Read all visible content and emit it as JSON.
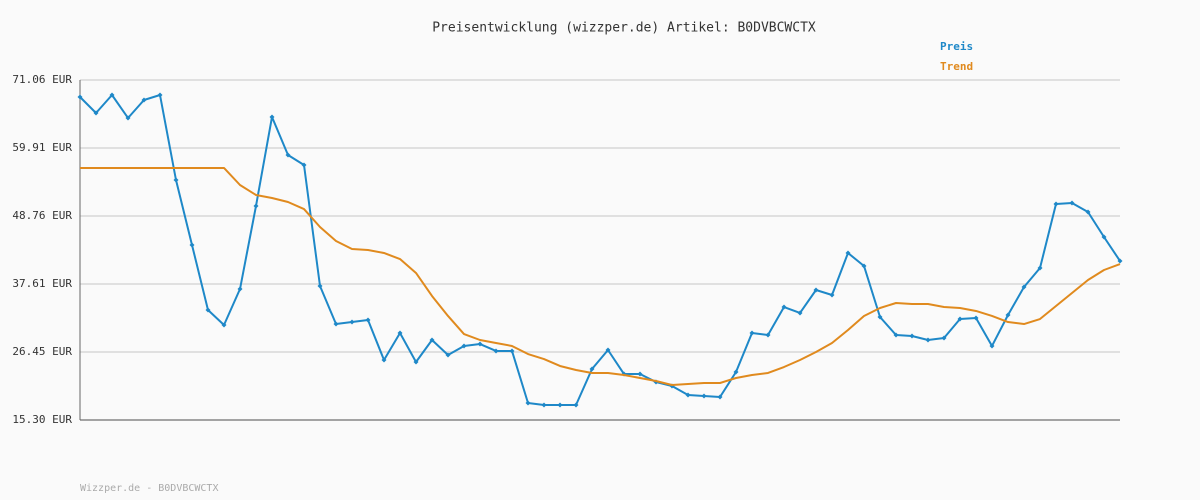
{
  "chart_data": {
    "type": "line",
    "title": "Preisentwicklung (wizzper.de) Artikel: B0DVBCWCTX",
    "footer": "Wizzper.de - B0DVBCWCTX",
    "categories": [
      null,
      null,
      null,
      null,
      null,
      null,
      null,
      null,
      null,
      null,
      null,
      null,
      null,
      null,
      null,
      null,
      null,
      null,
      null,
      null,
      null,
      null,
      null,
      null,
      null,
      null,
      null,
      null,
      null,
      null,
      null,
      null,
      null,
      null,
      null,
      null,
      null,
      null,
      null,
      null,
      null,
      null,
      null,
      null,
      null,
      null,
      null,
      null,
      null,
      null,
      null,
      null,
      null,
      null,
      null,
      null,
      null,
      null,
      null,
      null,
      null,
      null,
      null,
      null,
      null,
      null
    ],
    "ylim": [
      15.3,
      71.06
    ],
    "yticks": [
      {
        "value": 15.3,
        "label": "15.30 EUR"
      },
      {
        "value": 26.45,
        "label": "26.45 EUR"
      },
      {
        "value": 37.61,
        "label": "37.61 EUR"
      },
      {
        "value": 48.76,
        "label": "48.76 EUR"
      },
      {
        "value": 59.91,
        "label": "59.91 EUR"
      },
      {
        "value": 71.06,
        "label": "71.06 EUR"
      }
    ],
    "grid": true,
    "legend": "top-right",
    "series": [
      {
        "name": "Preis",
        "color": "#1e88c8",
        "markers": true,
        "values": [
          68.27,
          65.65,
          68.6,
          64.83,
          67.78,
          68.6,
          54.66,
          44.0,
          33.34,
          30.88,
          36.78,
          50.4,
          65.0,
          58.76,
          57.12,
          37.28,
          31.04,
          31.37,
          31.7,
          25.14,
          29.57,
          24.81,
          28.42,
          25.96,
          27.44,
          27.76,
          26.62,
          26.62,
          18.09,
          17.76,
          17.76,
          17.76,
          23.66,
          26.78,
          22.84,
          22.84,
          21.53,
          20.88,
          19.4,
          19.24,
          19.07,
          23.17,
          29.57,
          29.24,
          33.83,
          32.85,
          36.62,
          35.8,
          42.69,
          40.56,
          32.19,
          29.24,
          29.08,
          28.42,
          28.75,
          31.86,
          32.03,
          27.44,
          32.52,
          37.11,
          40.23,
          50.72,
          50.89,
          49.41,
          45.31,
          41.38
        ]
      },
      {
        "name": "Trend",
        "color": "#e08a1e",
        "markers": false,
        "values": [
          56.63,
          56.63,
          56.63,
          56.63,
          56.63,
          56.63,
          56.63,
          56.63,
          56.63,
          56.63,
          53.84,
          52.2,
          51.71,
          51.05,
          49.9,
          46.95,
          44.66,
          43.34,
          43.18,
          42.69,
          41.7,
          39.41,
          35.64,
          32.36,
          29.4,
          28.42,
          27.93,
          27.44,
          26.12,
          25.3,
          24.16,
          23.5,
          23.01,
          23.01,
          22.68,
          22.19,
          21.7,
          21.04,
          21.2,
          21.37,
          21.37,
          22.19,
          22.68,
          23.01,
          23.99,
          25.14,
          26.45,
          27.93,
          30.06,
          32.36,
          33.67,
          34.49,
          34.32,
          34.32,
          33.83,
          33.67,
          33.18,
          32.36,
          31.37,
          31.04,
          31.86,
          34.0,
          36.13,
          38.26,
          39.9,
          40.88
        ]
      }
    ]
  }
}
